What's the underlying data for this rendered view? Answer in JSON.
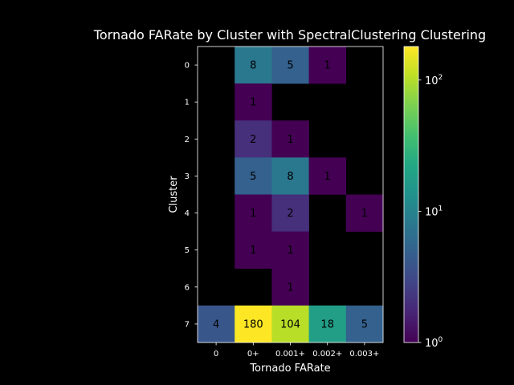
{
  "chart_data": {
    "type": "heatmap",
    "title": "Tornado FARate by Cluster with SpectralClustering Clustering",
    "xlabel": "Tornado FARate",
    "ylabel": "Cluster",
    "x_categories": [
      "0",
      "0+",
      "0.001+",
      "0.002+",
      "0.003+"
    ],
    "y_categories": [
      "0",
      "1",
      "2",
      "3",
      "4",
      "5",
      "6",
      "7"
    ],
    "values": [
      [
        null,
        8,
        5,
        1,
        null
      ],
      [
        null,
        1,
        null,
        null,
        null
      ],
      [
        null,
        2,
        1,
        null,
        null
      ],
      [
        null,
        5,
        8,
        1,
        null
      ],
      [
        null,
        1,
        2,
        null,
        1
      ],
      [
        null,
        1,
        1,
        null,
        null
      ],
      [
        null,
        null,
        1,
        null,
        null
      ],
      [
        4,
        180,
        104,
        18,
        5
      ]
    ],
    "color_scale": "log",
    "colormap": "viridis",
    "colorbar": {
      "range": [
        1,
        180
      ],
      "ticks": [
        {
          "value": 1,
          "base": "10",
          "exp": "0"
        },
        {
          "value": 10,
          "base": "10",
          "exp": "1"
        },
        {
          "value": 100,
          "base": "10",
          "exp": "2"
        }
      ]
    },
    "background_color": "#000000"
  }
}
